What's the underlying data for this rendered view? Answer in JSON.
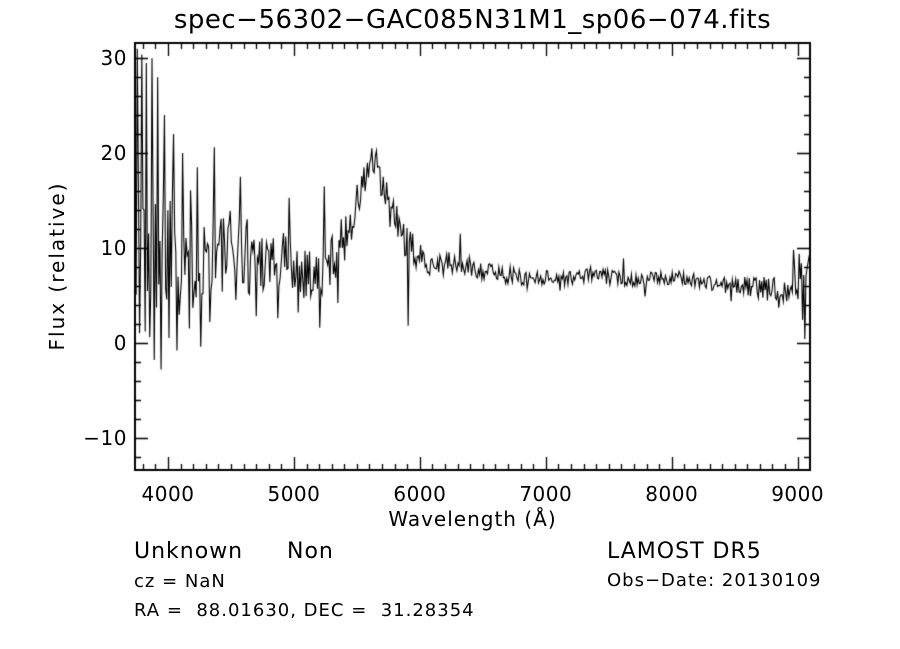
{
  "figure": {
    "background": "#ffffff",
    "ink": "#000000"
  },
  "chart_data": {
    "type": "line",
    "title": "spec−56302−GAC085N31M1_sp06−074.fits",
    "xlabel": "Wavelength (Å)",
    "ylabel": "Flux (relative)",
    "xlim": [
      3738,
      9098
    ],
    "ylim": [
      -13.4,
      31.6
    ],
    "grid": false,
    "legend": null,
    "line_color": "#000000",
    "x_major_ticks": [
      4000,
      5000,
      6000,
      7000,
      8000,
      9000
    ],
    "x_tick_labels": [
      "4000",
      "5000",
      "6000",
      "7000",
      "8000",
      "9000"
    ],
    "x_minor_step": 100,
    "y_major_ticks": [
      -10,
      0,
      10,
      20,
      30
    ],
    "y_tick_labels": [
      "−10",
      "0",
      "10",
      "20",
      "30"
    ],
    "y_minor_step": 2,
    "spectrum": {
      "description": "Noisy stellar spectrum: continuum baseline with wavelength-dependent noise envelope plus notable spike features",
      "step": 9,
      "seed": 1337,
      "clip_max": 31.4,
      "clip_min": -13.2,
      "baseline": [
        [
          3740,
          13.5
        ],
        [
          3800,
          13.0
        ],
        [
          3900,
          12.0
        ],
        [
          4000,
          11.0
        ],
        [
          4150,
          10.0
        ],
        [
          4300,
          9.3
        ],
        [
          4500,
          9.2
        ],
        [
          4700,
          9.3
        ],
        [
          4900,
          8.8
        ],
        [
          5000,
          8.6
        ],
        [
          5100,
          7.6
        ],
        [
          5200,
          6.9
        ],
        [
          5300,
          8.8
        ],
        [
          5400,
          11.0
        ],
        [
          5500,
          14.5
        ],
        [
          5560,
          17.0
        ],
        [
          5610,
          19.2
        ],
        [
          5660,
          18.0
        ],
        [
          5720,
          15.5
        ],
        [
          5800,
          13.0
        ],
        [
          5900,
          10.5
        ],
        [
          6000,
          8.8
        ],
        [
          6150,
          8.4
        ],
        [
          6300,
          8.2
        ],
        [
          6450,
          7.8
        ],
        [
          6600,
          7.4
        ],
        [
          6800,
          6.9
        ],
        [
          7000,
          6.9
        ],
        [
          7200,
          6.8
        ],
        [
          7350,
          7.3
        ],
        [
          7500,
          6.9
        ],
        [
          7700,
          6.7
        ],
        [
          7900,
          6.8
        ],
        [
          8100,
          6.8
        ],
        [
          8300,
          6.3
        ],
        [
          8500,
          6.0
        ],
        [
          8700,
          5.8
        ],
        [
          8850,
          5.6
        ],
        [
          8950,
          6.2
        ],
        [
          9098,
          7.3
        ]
      ],
      "noise_amplitude": [
        [
          3740,
          13.5
        ],
        [
          3800,
          12.5
        ],
        [
          3900,
          10.0
        ],
        [
          4000,
          8.5
        ],
        [
          4150,
          7.0
        ],
        [
          4300,
          6.0
        ],
        [
          4500,
          5.0
        ],
        [
          4700,
          4.2
        ],
        [
          4900,
          3.6
        ],
        [
          5100,
          3.2
        ],
        [
          5300,
          2.8
        ],
        [
          5500,
          2.3
        ],
        [
          5700,
          2.2
        ],
        [
          5900,
          2.0
        ],
        [
          6000,
          1.6
        ],
        [
          6200,
          1.3
        ],
        [
          6400,
          1.1
        ],
        [
          6600,
          1.0
        ],
        [
          6800,
          0.9
        ],
        [
          7000,
          0.8
        ],
        [
          7300,
          0.8
        ],
        [
          7600,
          0.8
        ],
        [
          7900,
          0.7
        ],
        [
          8200,
          0.8
        ],
        [
          8500,
          1.0
        ],
        [
          8700,
          1.2
        ],
        [
          8900,
          1.5
        ],
        [
          9000,
          2.3
        ],
        [
          9098,
          2.4
        ]
      ],
      "spikes": [
        [
          3755,
          31.0
        ],
        [
          3772,
          1.0
        ],
        [
          3790,
          30.4
        ],
        [
          3815,
          1.2
        ],
        [
          3832,
          29.5
        ],
        [
          3855,
          0.6
        ],
        [
          3872,
          30.0
        ],
        [
          3893,
          -1.8
        ],
        [
          3918,
          28.0
        ],
        [
          3942,
          -2.8
        ],
        [
          3970,
          24.0
        ],
        [
          4005,
          0.5
        ],
        [
          4040,
          22.0
        ],
        [
          4075,
          -0.8
        ],
        [
          4120,
          20.0
        ],
        [
          4170,
          1.5
        ],
        [
          4230,
          18.5
        ],
        [
          4262,
          -0.4
        ],
        [
          4330,
          2.2
        ],
        [
          4370,
          20.6
        ],
        [
          4575,
          17.5
        ],
        [
          4700,
          2.8
        ],
        [
          4870,
          2.6
        ],
        [
          4960,
          15.3
        ],
        [
          5030,
          3.2
        ],
        [
          5205,
          1.6
        ],
        [
          5240,
          16.5
        ],
        [
          5350,
          4.2
        ],
        [
          5906,
          1.8
        ],
        [
          6320,
          11.5
        ],
        [
          6850,
          5.7
        ],
        [
          7112,
          5.5
        ],
        [
          7615,
          8.9
        ],
        [
          7790,
          4.9
        ],
        [
          8470,
          4.4
        ],
        [
          8850,
          3.7
        ],
        [
          8970,
          9.8
        ],
        [
          9012,
          9.4
        ],
        [
          9035,
          2.4
        ],
        [
          9058,
          0.4
        ],
        [
          9080,
          8.6
        ]
      ]
    }
  },
  "annotations": {
    "class_label": "Unknown",
    "subclass_label": "Non",
    "cz_line": "cz = NaN",
    "radec_line": "RA =  88.01630, DEC =  31.28354",
    "survey_label": "LAMOST DR5",
    "obsdate_line": "Obs−Date: 20130109"
  }
}
